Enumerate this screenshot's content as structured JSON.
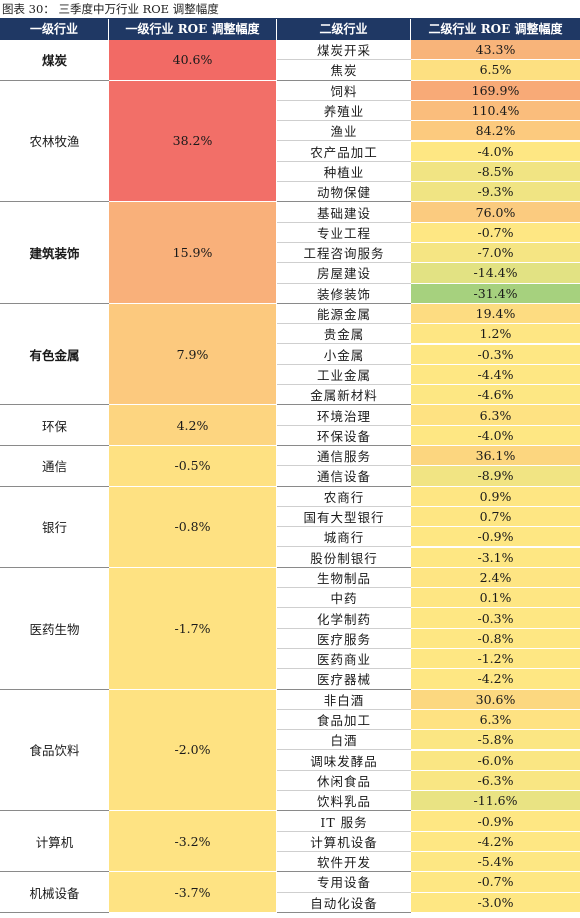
{
  "caption": "图表 30： 三季度中万行业 ROE 调整幅度",
  "headers": [
    "一级行业",
    "一级行业 ROE 调整幅度",
    "二级行业",
    "二级行业 ROE 调整幅度"
  ],
  "groups": [
    {
      "name": "煤炭",
      "bold": true,
      "roe": "40.6%",
      "color": "#f26a65",
      "subs": [
        [
          "煤炭开采",
          "43.3%",
          "#f8b47a"
        ],
        [
          "焦炭",
          "6.5%",
          "#fde081"
        ]
      ]
    },
    {
      "name": "农林牧渔",
      "bold": false,
      "roe": "38.2%",
      "color": "#f26f68",
      "subs": [
        [
          "饲料",
          "169.9%",
          "#f8aa77"
        ],
        [
          "养殖业",
          "110.4%",
          "#fabd7c"
        ],
        [
          "渔业",
          "84.2%",
          "#fcca7e"
        ],
        [
          "农产品加工",
          "-4.0%",
          "#fee783"
        ],
        [
          "种植业",
          "-8.5%",
          "#f1e483"
        ],
        [
          "动物保健",
          "-9.3%",
          "#f0e483"
        ]
      ]
    },
    {
      "name": "建筑装饰",
      "bold": true,
      "roe": "15.9%",
      "color": "#f9b07a",
      "subs": [
        [
          "基础建设",
          "76.0%",
          "#fbcb7f"
        ],
        [
          "专业工程",
          "-0.7%",
          "#fee783"
        ],
        [
          "工程咨询服务",
          "-7.0%",
          "#f5e583"
        ],
        [
          "房屋建设",
          "-14.4%",
          "#e2e283"
        ],
        [
          "装修装饰",
          "-31.4%",
          "#a6d17e"
        ]
      ]
    },
    {
      "name": "有色金属",
      "bold": true,
      "roe": "7.9%",
      "color": "#fcc97e",
      "subs": [
        [
          "能源金属",
          "19.4%",
          "#fddc81"
        ],
        [
          "贵金属",
          "1.2%",
          "#fee683"
        ],
        [
          "小金属",
          "-0.3%",
          "#fee783"
        ],
        [
          "工业金属",
          "-4.4%",
          "#fee783"
        ],
        [
          "金属新材料",
          "-4.6%",
          "#fde783"
        ]
      ]
    },
    {
      "name": "环保",
      "bold": false,
      "roe": "4.2%",
      "color": "#fdd580",
      "subs": [
        [
          "环境治理",
          "6.3%",
          "#fee282"
        ],
        [
          "环保设备",
          "-4.0%",
          "#fee783"
        ]
      ]
    },
    {
      "name": "通信",
      "bold": false,
      "roe": "-0.5%",
      "color": "#fee182",
      "subs": [
        [
          "通信服务",
          "36.1%",
          "#fcd67f"
        ],
        [
          "通信设备",
          "-8.9%",
          "#f1e483"
        ]
      ]
    },
    {
      "name": "银行",
      "bold": false,
      "roe": "-0.8%",
      "color": "#fee182",
      "subs": [
        [
          "农商行",
          "0.9%",
          "#fee683"
        ],
        [
          "国有大型银行",
          "0.7%",
          "#fee683"
        ],
        [
          "城商行",
          "-0.9%",
          "#fee783"
        ],
        [
          "股份制银行",
          "-3.1%",
          "#fee783"
        ]
      ]
    },
    {
      "name": "医药生物",
      "bold": false,
      "roe": "-1.7%",
      "color": "#fee282",
      "subs": [
        [
          "生物制品",
          "2.4%",
          "#fee583"
        ],
        [
          "中药",
          "0.1%",
          "#fee683"
        ],
        [
          "化学制药",
          "-0.3%",
          "#fee783"
        ],
        [
          "医疗服务",
          "-0.8%",
          "#fee783"
        ],
        [
          "医药商业",
          "-1.2%",
          "#fee783"
        ],
        [
          "医疗器械",
          "-4.2%",
          "#fee783"
        ]
      ]
    },
    {
      "name": "食品饮料",
      "bold": false,
      "roe": "-2.0%",
      "color": "#fee282",
      "subs": [
        [
          "非白酒",
          "30.6%",
          "#fcd880"
        ],
        [
          "食品加工",
          "6.3%",
          "#fee282"
        ],
        [
          "白酒",
          "-5.8%",
          "#fbe683"
        ],
        [
          "调味发酵品",
          "-6.0%",
          "#fae683"
        ],
        [
          "休闲食品",
          "-6.3%",
          "#f9e683"
        ],
        [
          "饮料乳品",
          "-11.6%",
          "#e9e383"
        ]
      ]
    },
    {
      "name": "计算机",
      "bold": false,
      "roe": "-3.2%",
      "color": "#fee383",
      "subs": [
        [
          "IT 服务",
          "-0.9%",
          "#fee783"
        ],
        [
          "计算机设备",
          "-4.2%",
          "#fee783"
        ],
        [
          "软件开发",
          "-5.4%",
          "#fde783"
        ]
      ]
    },
    {
      "name": "机械设备",
      "bold": false,
      "roe": "-3.7%",
      "color": "#fee383",
      "subs": [
        [
          "专用设备",
          "-0.7%",
          "#fee783"
        ],
        [
          "自动化设备",
          "-3.0%",
          "#fee783"
        ]
      ]
    }
  ]
}
